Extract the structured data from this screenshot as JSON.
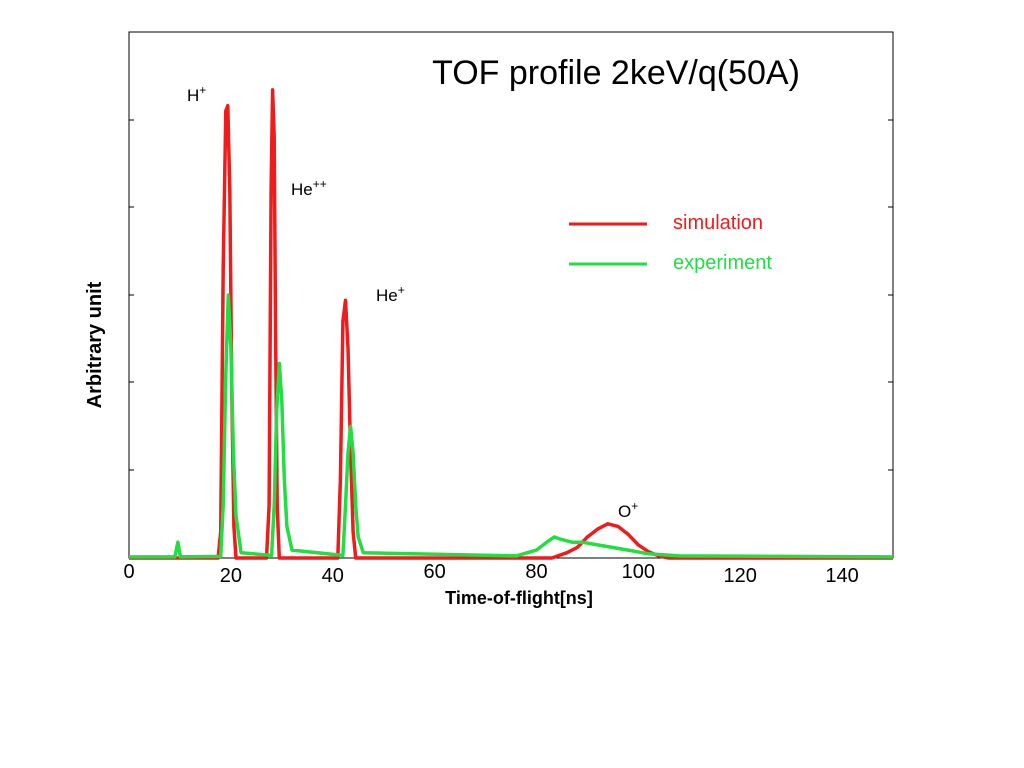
{
  "chart_data": {
    "type": "line",
    "title": "TOF profile   2keV/q(50A)",
    "xlabel": "Time-of-flight[ns]",
    "ylabel": "Arbitrary unit",
    "xlim": [
      0,
      150
    ],
    "ylim": [
      0,
      1.0
    ],
    "x_ticks": [
      "0",
      "20",
      "40",
      "60",
      "80",
      "100",
      "120",
      "140"
    ],
    "x_tick_values": [
      0,
      20,
      40,
      60,
      80,
      100,
      120,
      140
    ],
    "grid": false,
    "legend_position": "top-right",
    "series": [
      {
        "name": "simulation",
        "color": "#ee1c1c",
        "points": [
          [
            0,
            0.0
          ],
          [
            17.5,
            0.0
          ],
          [
            18,
            0.05
          ],
          [
            18.5,
            0.55
          ],
          [
            19,
            0.85
          ],
          [
            19.4,
            0.86
          ],
          [
            19.8,
            0.7
          ],
          [
            20.2,
            0.3
          ],
          [
            20.6,
            0.06
          ],
          [
            21,
            0.0
          ],
          [
            27,
            0.0
          ],
          [
            27.5,
            0.1
          ],
          [
            27.9,
            0.7
          ],
          [
            28.2,
            0.89
          ],
          [
            28.5,
            0.8
          ],
          [
            28.8,
            0.4
          ],
          [
            29.1,
            0.1
          ],
          [
            29.5,
            0.0
          ],
          [
            41,
            0.0
          ],
          [
            41.5,
            0.15
          ],
          [
            42,
            0.45
          ],
          [
            42.5,
            0.49
          ],
          [
            43,
            0.4
          ],
          [
            43.5,
            0.2
          ],
          [
            44,
            0.05
          ],
          [
            44.5,
            0.0
          ],
          [
            83,
            0.0
          ],
          [
            86,
            0.01
          ],
          [
            88,
            0.02
          ],
          [
            90,
            0.04
          ],
          [
            92,
            0.055
          ],
          [
            94,
            0.065
          ],
          [
            96,
            0.06
          ],
          [
            98,
            0.045
          ],
          [
            100,
            0.025
          ],
          [
            102,
            0.012
          ],
          [
            104,
            0.004
          ],
          [
            106,
            0.0
          ],
          [
            150,
            0.0
          ]
        ]
      },
      {
        "name": "experiment",
        "color": "#22dd44",
        "points": [
          [
            0,
            0.002
          ],
          [
            9,
            0.002
          ],
          [
            9.6,
            0.03
          ],
          [
            10.1,
            0.002
          ],
          [
            18,
            0.003
          ],
          [
            18.5,
            0.1
          ],
          [
            19,
            0.35
          ],
          [
            19.5,
            0.5
          ],
          [
            20,
            0.4
          ],
          [
            20.5,
            0.2
          ],
          [
            21,
            0.08
          ],
          [
            22,
            0.01
          ],
          [
            28,
            0.005
          ],
          [
            28.5,
            0.1
          ],
          [
            29,
            0.28
          ],
          [
            29.5,
            0.37
          ],
          [
            30,
            0.3
          ],
          [
            30.5,
            0.15
          ],
          [
            31,
            0.06
          ],
          [
            32,
            0.015
          ],
          [
            42,
            0.005
          ],
          [
            42.5,
            0.1
          ],
          [
            43,
            0.2
          ],
          [
            43.5,
            0.25
          ],
          [
            44,
            0.2
          ],
          [
            44.5,
            0.1
          ],
          [
            45,
            0.04
          ],
          [
            46,
            0.01
          ],
          [
            76,
            0.004
          ],
          [
            80,
            0.015
          ],
          [
            82,
            0.03
          ],
          [
            83.5,
            0.04
          ],
          [
            85,
            0.035
          ],
          [
            87,
            0.03
          ],
          [
            89,
            0.03
          ],
          [
            92,
            0.025
          ],
          [
            95,
            0.02
          ],
          [
            98,
            0.015
          ],
          [
            102,
            0.008
          ],
          [
            108,
            0.004
          ],
          [
            150,
            0.002
          ]
        ]
      }
    ],
    "annotations": [
      {
        "base": "H",
        "sup": "+"
      },
      {
        "base": "He",
        "sup": "++"
      },
      {
        "base": "He",
        "sup": "+"
      },
      {
        "base": "O",
        "sup": "+"
      }
    ]
  }
}
